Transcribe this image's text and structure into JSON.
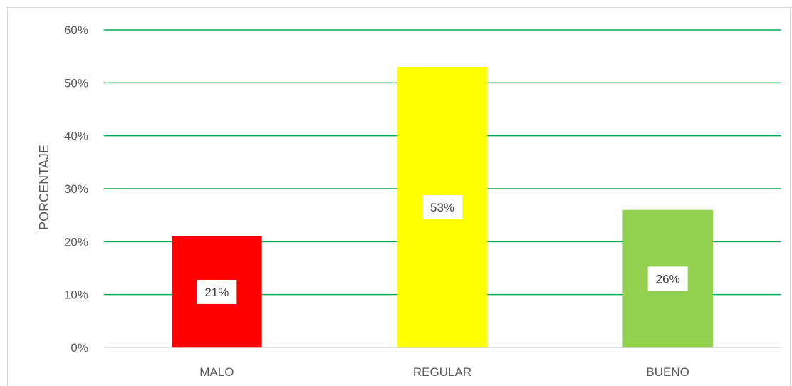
{
  "chart_data": {
    "type": "bar",
    "title": "",
    "xlabel": "",
    "ylabel": "PORCENTAJE",
    "categories": [
      "MALO",
      "REGULAR",
      "BUENO"
    ],
    "values": [
      21,
      53,
      26
    ],
    "data_labels": [
      "21%",
      "53%",
      "26%"
    ],
    "bar_colors": [
      "#ff0000",
      "#ffff00",
      "#92d050"
    ],
    "ylim": [
      0,
      60
    ],
    "yticks": [
      0,
      10,
      20,
      30,
      40,
      50,
      60
    ],
    "ytick_labels": [
      "0%",
      "10%",
      "20%",
      "30%",
      "40%",
      "50%",
      "60%"
    ],
    "grid": true,
    "grid_color": "#00b050",
    "legend": "none"
  }
}
